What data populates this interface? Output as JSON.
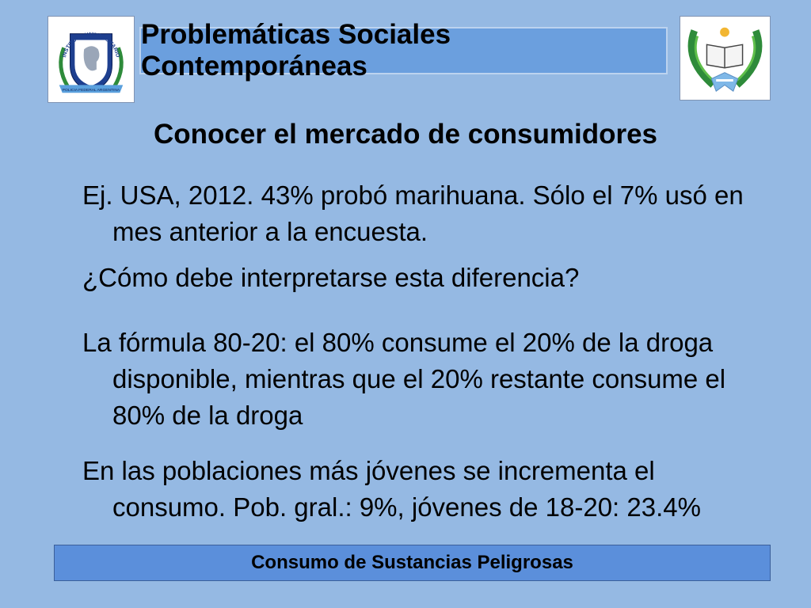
{
  "header": {
    "title": "Problemáticas Sociales Contemporáneas",
    "left_logo": {
      "icon": "institute-seal-icon",
      "text_top": "INSTITUTO UNIVERSITARIO",
      "text_bottom": "POLICIA FEDERAL ARGENTINA"
    },
    "right_logo": {
      "icon": "laurel-book-emblem-icon"
    }
  },
  "subtitle": "Conocer el mercado de consumidores",
  "paragraphs": [
    {
      "line1": "Ej. USA, 2012. 43% probó marihuana. Sólo el 7% usó en",
      "rest": "mes anterior a la encuesta."
    },
    {
      "line1": "¿Cómo debe interpretarse esta diferencia?"
    },
    {
      "line1": "La fórmula 80-20: el 80% consume el 20% de la droga",
      "rest1": "disponible, mientras que el 20% restante consume el",
      "rest2": "80% de la droga"
    },
    {
      "line1": "En las poblaciones más jóvenes se incrementa el",
      "rest": "consumo.  Pob. gral.: 9%, jóvenes de 18-20: 23.4%"
    }
  ],
  "footer": {
    "text": "Consumo de Sustancias Peligrosas"
  },
  "colors": {
    "background": "#95b9e3",
    "title_box": "#6b9fde",
    "footer_box": "#5b8fdb",
    "laurel": "#2e8b3a",
    "seal_blue": "#1e3f8f"
  }
}
